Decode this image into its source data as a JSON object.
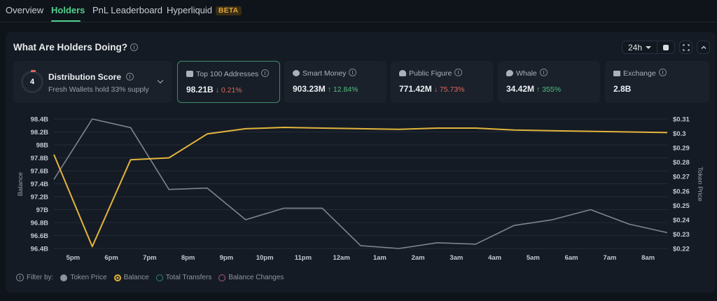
{
  "tabs": [
    {
      "label": "Overview",
      "active": false
    },
    {
      "label": "Holders",
      "active": true
    },
    {
      "label": "PnL Leaderboard",
      "active": false
    },
    {
      "label": "Hyperliquid",
      "badge": "BETA",
      "active": false
    }
  ],
  "panel": {
    "title": "What Are Holders Doing?",
    "timeframe": "24h",
    "icons": [
      "info-icon",
      "square-icon",
      "fullscreen-icon",
      "chevron-up-icon"
    ]
  },
  "distribution": {
    "score": "4",
    "title": "Distribution Score",
    "subtitle": "Fresh Wallets hold 33% supply"
  },
  "cards": [
    {
      "label": "Top 100 Addresses",
      "icon": "wallet-icon",
      "value": "98.21B",
      "change": "0.21%",
      "direction": "down",
      "selected": true
    },
    {
      "label": "Smart Money",
      "icon": "spy-icon",
      "value": "903.23M",
      "change": "12.84%",
      "direction": "up",
      "selected": false
    },
    {
      "label": "Public Figure",
      "icon": "broadcast-icon",
      "value": "771.42M",
      "change": "75.73%",
      "direction": "down",
      "selected": false
    },
    {
      "label": "Whale",
      "icon": "whale-icon",
      "value": "34.42M",
      "change": "355%",
      "direction": "up",
      "selected": false
    },
    {
      "label": "Exchange",
      "icon": "bank-icon",
      "value": "2.8B",
      "change": "",
      "direction": "",
      "selected": false
    }
  ],
  "filters": {
    "label": "Filter by:",
    "items": [
      {
        "label": "Token Price",
        "color": "#8a93a0",
        "state": "filled"
      },
      {
        "label": "Balance",
        "color": "#e2b53b",
        "state": "selected"
      },
      {
        "label": "Total Transfers",
        "color": "#2e8a6a",
        "state": "outline"
      },
      {
        "label": "Balance Changes",
        "color": "#b5597a",
        "state": "outline"
      }
    ]
  },
  "chart_data": {
    "type": "line",
    "title": "",
    "xlabel": "",
    "ylabel": "Balance",
    "y2label": "Token Price",
    "x_tick_labels": [
      "5pm",
      "6pm",
      "7pm",
      "8pm",
      "9pm",
      "10pm",
      "11pm",
      "12am",
      "1am",
      "2am",
      "3am",
      "4am",
      "5am",
      "6am",
      "7am",
      "8am"
    ],
    "y_ticks": [
      "98.4B",
      "98.2B",
      "98B",
      "97.8B",
      "97.6B",
      "97.4B",
      "97.2B",
      "97B",
      "96.8B",
      "96.6B",
      "96.4B"
    ],
    "y2_ticks": [
      "$0.31",
      "$0.3",
      "$0.29",
      "$0.28",
      "$0.27",
      "$0.26",
      "$0.25",
      "$0.24",
      "$0.23",
      "$0.22"
    ],
    "ylim": [
      96.4,
      98.4
    ],
    "y2lim": [
      0.22,
      0.31
    ],
    "grid": true,
    "series": [
      {
        "name": "Balance",
        "axis": "left",
        "unit": "B",
        "color": "#e2b53b",
        "values": [
          97.85,
          96.43,
          97.77,
          97.8,
          98.17,
          98.25,
          98.27,
          98.26,
          98.25,
          98.24,
          98.26,
          98.26,
          98.23,
          98.22,
          98.21,
          98.2,
          98.19
        ]
      },
      {
        "name": "Token Price",
        "axis": "right",
        "unit": "$",
        "color": "#7d8591",
        "values": [
          0.268,
          0.31,
          0.304,
          0.261,
          0.262,
          0.24,
          0.248,
          0.248,
          0.222,
          0.22,
          0.224,
          0.223,
          0.236,
          0.24,
          0.247,
          0.237,
          0.231
        ]
      }
    ]
  }
}
